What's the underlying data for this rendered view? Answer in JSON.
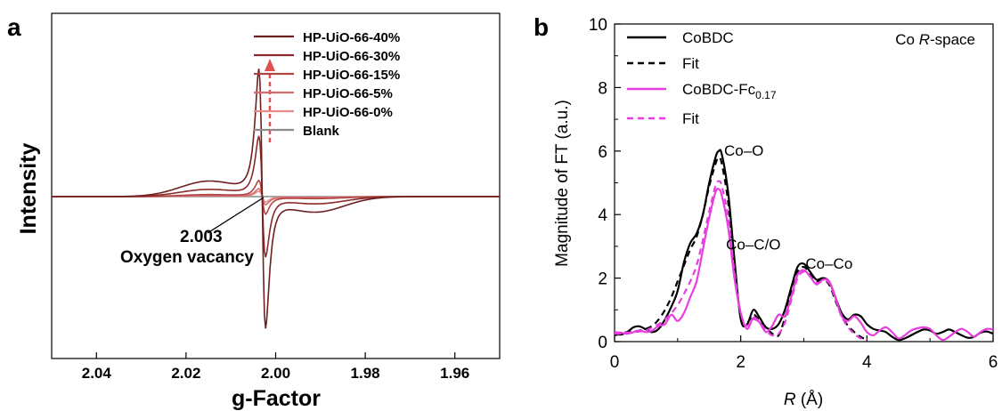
{
  "panel_a_letter": "a",
  "panel_b_letter": "b",
  "chart_data": [
    {
      "type": "line",
      "panel": "a",
      "xlabel": "g-Factor",
      "ylabel": "Intensity",
      "xlim": [
        2.05,
        1.95
      ],
      "x_reversed": true,
      "xticks": [
        "2.04",
        "2.02",
        "2.00",
        "1.98",
        "1.96"
      ],
      "xtick_values": [
        2.04,
        2.02,
        2.0,
        1.98,
        1.96
      ],
      "yticks_shown": false,
      "ylim": [
        -1.0,
        1.0
      ],
      "grid": false,
      "legend_position": "top-right",
      "annotation": {
        "value": "2.003",
        "text": "Oxygen vacancy",
        "g": 2.003
      },
      "arrow_annotation": "upward dashed red arrow indicating increasing signal",
      "series": [
        {
          "name": "HP-UiO-66-40%",
          "color": "#6e1f1f",
          "peak_max": 0.95,
          "peak_min": -0.98
        },
        {
          "name": "HP-UiO-66-30%",
          "color": "#8b2a2a",
          "peak_max": 0.45,
          "peak_min": -0.45
        },
        {
          "name": "HP-UiO-66-15%",
          "color": "#b04545",
          "peak_max": 0.12,
          "peak_min": -0.13
        },
        {
          "name": "HP-UiO-66-5%",
          "color": "#d66b6b",
          "peak_max": 0.06,
          "peak_min": -0.06
        },
        {
          "name": "HP-UiO-66-0%",
          "color": "#e88a8a",
          "peak_max": 0.04,
          "peak_min": -0.04
        },
        {
          "name": "Blank",
          "color": "#8c8c8c",
          "peak_max": 0.0,
          "peak_min": 0.0
        }
      ]
    },
    {
      "type": "line",
      "panel": "b",
      "xlabel_italic": "R",
      "xlabel_rest": " (Å)",
      "ylabel": "Magnitude of FT (a.u.)",
      "xlim": [
        0,
        6
      ],
      "ylim": [
        0,
        10
      ],
      "xticks": [
        0,
        2,
        4,
        6
      ],
      "yticks": [
        0,
        2,
        4,
        6,
        8,
        10
      ],
      "grid": false,
      "legend_position": "top-left",
      "corner_label_prefix": "Co ",
      "corner_label_italic": "R",
      "corner_label_suffix": "-space",
      "annotations": [
        {
          "text": "Co–O",
          "x": 2.05,
          "y": 5.85
        },
        {
          "text": "Co–C/O",
          "x": 2.2,
          "y": 2.9
        },
        {
          "text": "Co–Co",
          "x": 3.4,
          "y": 2.3
        }
      ],
      "series": [
        {
          "name": "CoBDC",
          "color": "#000000",
          "dash": false,
          "x": [
            0,
            0.1,
            0.2,
            0.3,
            0.4,
            0.5,
            0.6,
            0.7,
            0.8,
            0.9,
            1.0,
            1.1,
            1.2,
            1.3,
            1.4,
            1.5,
            1.6,
            1.65,
            1.7,
            1.8,
            1.9,
            2.0,
            2.1,
            2.2,
            2.3,
            2.4,
            2.5,
            2.6,
            2.7,
            2.8,
            2.9,
            3.0,
            3.1,
            3.2,
            3.3,
            3.4,
            3.5,
            3.6,
            3.7,
            3.8,
            3.9,
            4.0,
            4.1,
            4.2,
            4.3,
            4.4,
            4.5,
            4.6,
            4.7,
            4.8,
            4.9,
            5.0,
            5.1,
            5.2,
            5.3,
            5.4,
            5.5,
            5.6,
            5.7,
            5.8,
            5.9,
            6.0
          ],
          "y": [
            0.25,
            0.22,
            0.3,
            0.45,
            0.48,
            0.38,
            0.3,
            0.4,
            0.7,
            1.1,
            1.6,
            2.5,
            3.1,
            3.4,
            4.0,
            5.0,
            5.8,
            6.0,
            5.9,
            4.7,
            2.6,
            0.7,
            0.55,
            1.0,
            0.75,
            0.45,
            0.4,
            0.55,
            1.0,
            1.7,
            2.35,
            2.45,
            2.2,
            1.95,
            2.0,
            1.9,
            1.4,
            0.9,
            0.7,
            0.85,
            0.8,
            0.55,
            0.4,
            0.35,
            0.3,
            0.15,
            0.05,
            0.1,
            0.2,
            0.3,
            0.38,
            0.35,
            0.25,
            0.3,
            0.38,
            0.3,
            0.2,
            0.12,
            0.15,
            0.28,
            0.32,
            0.25
          ]
        },
        {
          "name": "Fit",
          "color": "#000000",
          "dash": true,
          "x": [
            0,
            0.1,
            0.2,
            0.3,
            0.4,
            0.5,
            0.6,
            0.7,
            0.8,
            0.9,
            1.0,
            1.1,
            1.2,
            1.3,
            1.4,
            1.5,
            1.6,
            1.65,
            1.7,
            1.8,
            1.9,
            2.0,
            2.1,
            2.2,
            2.3,
            2.4,
            2.5,
            2.6,
            2.7,
            2.8,
            2.9,
            3.0,
            3.1,
            3.2,
            3.3,
            3.4,
            3.5,
            3.6,
            3.7,
            3.8,
            3.9,
            4.0
          ],
          "y": [
            0.2,
            0.25,
            0.3,
            0.32,
            0.35,
            0.4,
            0.5,
            0.7,
            1.0,
            1.4,
            1.9,
            2.4,
            2.9,
            3.3,
            4.0,
            4.9,
            5.6,
            5.8,
            5.6,
            4.4,
            2.4,
            0.8,
            0.6,
            0.85,
            0.65,
            0.45,
            0.25,
            0.2,
            0.75,
            1.5,
            2.2,
            2.35,
            2.15,
            1.9,
            1.95,
            1.8,
            1.3,
            0.8,
            0.5,
            0.3,
            0.15,
            0.05
          ]
        },
        {
          "name": "CoBDC-Fc",
          "name_sub": "0.17",
          "color": "#e83ee0",
          "dash": false,
          "x": [
            0,
            0.1,
            0.2,
            0.3,
            0.4,
            0.5,
            0.6,
            0.7,
            0.8,
            0.9,
            1.0,
            1.1,
            1.2,
            1.3,
            1.4,
            1.5,
            1.6,
            1.65,
            1.7,
            1.8,
            1.9,
            2.0,
            2.1,
            2.2,
            2.3,
            2.4,
            2.5,
            2.6,
            2.7,
            2.8,
            2.9,
            3.0,
            3.1,
            3.2,
            3.3,
            3.4,
            3.5,
            3.6,
            3.7,
            3.8,
            3.9,
            4.0,
            4.1,
            4.2,
            4.3,
            4.4,
            4.5,
            4.6,
            4.7,
            4.8,
            4.9,
            5.0,
            5.1,
            5.2,
            5.3,
            5.4,
            5.5,
            5.6,
            5.7,
            5.8,
            5.9,
            6.0
          ],
          "y": [
            0.3,
            0.28,
            0.25,
            0.3,
            0.35,
            0.3,
            0.35,
            0.5,
            0.55,
            0.85,
            0.65,
            0.9,
            1.4,
            1.9,
            2.9,
            3.9,
            4.7,
            4.8,
            4.6,
            3.6,
            2.0,
            0.9,
            0.4,
            0.75,
            0.6,
            0.3,
            0.5,
            0.85,
            0.8,
            1.4,
            2.1,
            2.25,
            2.05,
            1.8,
            1.95,
            1.9,
            1.4,
            0.8,
            0.65,
            0.8,
            0.6,
            0.3,
            0.2,
            0.35,
            0.45,
            0.3,
            0.1,
            0.2,
            0.35,
            0.42,
            0.45,
            0.4,
            0.2,
            0.05,
            0.15,
            0.3,
            0.4,
            0.3,
            0.15,
            0.3,
            0.4,
            0.38
          ]
        },
        {
          "name": "Fit",
          "color": "#e83ee0",
          "dash": true,
          "x": [
            0,
            0.1,
            0.2,
            0.3,
            0.4,
            0.5,
            0.6,
            0.7,
            0.8,
            0.9,
            1.0,
            1.1,
            1.2,
            1.3,
            1.4,
            1.5,
            1.6,
            1.65,
            1.7,
            1.8,
            1.9,
            2.0,
            2.1,
            2.2,
            2.3,
            2.4,
            2.5,
            2.6,
            2.7,
            2.8,
            2.9,
            3.0,
            3.1,
            3.2,
            3.3,
            3.4,
            3.5,
            3.6,
            3.7,
            3.8,
            3.9,
            4.0
          ],
          "y": [
            0.25,
            0.25,
            0.28,
            0.3,
            0.32,
            0.35,
            0.45,
            0.55,
            0.7,
            0.9,
            1.15,
            1.5,
            1.9,
            2.4,
            3.2,
            4.1,
            4.9,
            5.05,
            4.9,
            3.9,
            2.2,
            0.9,
            0.5,
            0.7,
            0.6,
            0.35,
            0.2,
            0.25,
            0.6,
            1.3,
            2.0,
            2.2,
            2.05,
            1.85,
            1.9,
            1.85,
            1.35,
            0.8,
            0.45,
            0.25,
            0.1,
            0.05
          ]
        }
      ]
    }
  ]
}
